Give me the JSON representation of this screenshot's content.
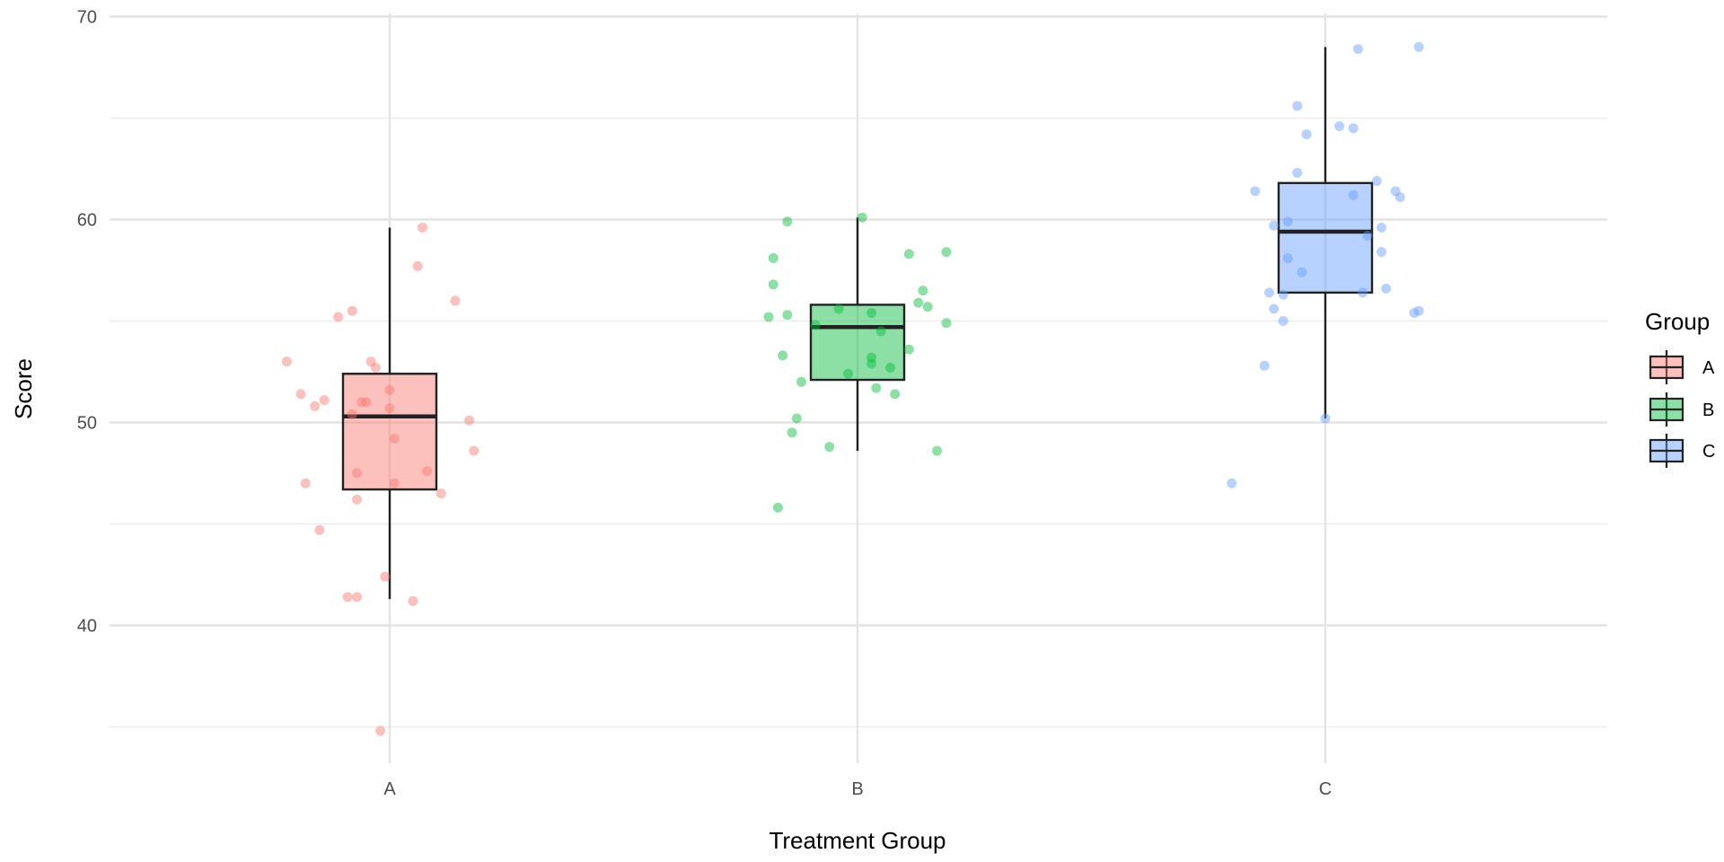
{
  "chart_data": {
    "type": "boxplot",
    "xlabel": "Treatment Group",
    "ylabel": "Score",
    "categories": [
      "A",
      "B",
      "C"
    ],
    "ylim": [
      33,
      70
    ],
    "yticks": [
      40,
      50,
      60,
      70
    ],
    "grid": true,
    "legend": {
      "title": "Group",
      "position": "right",
      "entries": [
        "A",
        "B",
        "C"
      ]
    },
    "colors": {
      "A": "#F8766D",
      "B": "#00BA38",
      "C": "#619CFF"
    },
    "boxes": [
      {
        "group": "A",
        "q1": 46.7,
        "median": 50.3,
        "q3": 52.4,
        "whisker_low": 41.3,
        "whisker_high": 59.6
      },
      {
        "group": "B",
        "q1": 52.1,
        "median": 54.7,
        "q3": 55.8,
        "whisker_low": 48.6,
        "whisker_high": 60.1
      },
      {
        "group": "C",
        "q1": 56.4,
        "median": 59.4,
        "q3": 61.8,
        "whisker_low": 50.2,
        "whisker_high": 68.5
      }
    ],
    "points": {
      "A": [
        {
          "x": -0.22,
          "y": 53.0
        },
        {
          "x": -0.19,
          "y": 51.4
        },
        {
          "x": -0.18,
          "y": 47.0
        },
        {
          "x": -0.15,
          "y": 44.7
        },
        {
          "x": -0.16,
          "y": 50.8
        },
        {
          "x": -0.14,
          "y": 51.1
        },
        {
          "x": -0.11,
          "y": 55.2
        },
        {
          "x": -0.09,
          "y": 41.4
        },
        {
          "x": -0.07,
          "y": 41.4
        },
        {
          "x": -0.08,
          "y": 55.5
        },
        {
          "x": -0.08,
          "y": 50.4
        },
        {
          "x": -0.07,
          "y": 47.5
        },
        {
          "x": -0.07,
          "y": 46.2
        },
        {
          "x": -0.06,
          "y": 51.0
        },
        {
          "x": -0.05,
          "y": 51.0
        },
        {
          "x": -0.04,
          "y": 53.0
        },
        {
          "x": -0.03,
          "y": 52.7
        },
        {
          "x": -0.02,
          "y": 34.8
        },
        {
          "x": -0.01,
          "y": 42.4
        },
        {
          "x": 0.0,
          "y": 51.6
        },
        {
          "x": 0.0,
          "y": 50.7
        },
        {
          "x": 0.01,
          "y": 49.2
        },
        {
          "x": 0.01,
          "y": 47.0
        },
        {
          "x": 0.05,
          "y": 41.2
        },
        {
          "x": 0.06,
          "y": 57.7
        },
        {
          "x": 0.07,
          "y": 59.6
        },
        {
          "x": 0.08,
          "y": 47.6
        },
        {
          "x": 0.11,
          "y": 46.5
        },
        {
          "x": 0.14,
          "y": 56.0
        },
        {
          "x": 0.17,
          "y": 50.1
        },
        {
          "x": 0.18,
          "y": 48.6
        }
      ],
      "B": [
        {
          "x": -0.19,
          "y": 55.2
        },
        {
          "x": -0.18,
          "y": 58.1
        },
        {
          "x": -0.18,
          "y": 56.8
        },
        {
          "x": -0.17,
          "y": 45.8
        },
        {
          "x": -0.16,
          "y": 53.3
        },
        {
          "x": -0.15,
          "y": 55.3
        },
        {
          "x": -0.15,
          "y": 59.9
        },
        {
          "x": -0.14,
          "y": 49.5
        },
        {
          "x": -0.13,
          "y": 50.2
        },
        {
          "x": -0.12,
          "y": 52.0
        },
        {
          "x": -0.09,
          "y": 54.8
        },
        {
          "x": -0.06,
          "y": 48.8
        },
        {
          "x": -0.04,
          "y": 55.6
        },
        {
          "x": -0.02,
          "y": 52.4
        },
        {
          "x": 0.01,
          "y": 60.1
        },
        {
          "x": 0.03,
          "y": 52.9
        },
        {
          "x": 0.03,
          "y": 55.4
        },
        {
          "x": 0.03,
          "y": 53.2
        },
        {
          "x": 0.04,
          "y": 51.7
        },
        {
          "x": 0.05,
          "y": 54.5
        },
        {
          "x": 0.07,
          "y": 52.7
        },
        {
          "x": 0.08,
          "y": 51.4
        },
        {
          "x": 0.11,
          "y": 58.3
        },
        {
          "x": 0.11,
          "y": 53.6
        },
        {
          "x": 0.13,
          "y": 55.9
        },
        {
          "x": 0.14,
          "y": 56.5
        },
        {
          "x": 0.15,
          "y": 55.7
        },
        {
          "x": 0.17,
          "y": 48.6
        },
        {
          "x": 0.19,
          "y": 54.9
        },
        {
          "x": 0.19,
          "y": 58.4
        }
      ],
      "C": [
        {
          "x": -0.2,
          "y": 47.0
        },
        {
          "x": -0.15,
          "y": 61.4
        },
        {
          "x": -0.13,
          "y": 52.8
        },
        {
          "x": -0.12,
          "y": 56.4
        },
        {
          "x": -0.11,
          "y": 55.6
        },
        {
          "x": -0.11,
          "y": 59.7
        },
        {
          "x": -0.09,
          "y": 56.3
        },
        {
          "x": -0.09,
          "y": 55.0
        },
        {
          "x": -0.08,
          "y": 59.9
        },
        {
          "x": -0.08,
          "y": 58.1
        },
        {
          "x": -0.06,
          "y": 65.6
        },
        {
          "x": -0.06,
          "y": 62.3
        },
        {
          "x": -0.05,
          "y": 57.4
        },
        {
          "x": -0.04,
          "y": 64.2
        },
        {
          "x": 0.0,
          "y": 50.2
        },
        {
          "x": 0.03,
          "y": 64.6
        },
        {
          "x": 0.06,
          "y": 61.2
        },
        {
          "x": 0.06,
          "y": 64.5
        },
        {
          "x": 0.07,
          "y": 68.4
        },
        {
          "x": 0.08,
          "y": 56.4
        },
        {
          "x": 0.09,
          "y": 59.2
        },
        {
          "x": 0.11,
          "y": 61.9
        },
        {
          "x": 0.12,
          "y": 59.6
        },
        {
          "x": 0.12,
          "y": 58.4
        },
        {
          "x": 0.13,
          "y": 56.6
        },
        {
          "x": 0.15,
          "y": 61.4
        },
        {
          "x": 0.16,
          "y": 61.1
        },
        {
          "x": 0.19,
          "y": 55.4
        },
        {
          "x": 0.2,
          "y": 68.5
        },
        {
          "x": 0.2,
          "y": 55.5
        }
      ]
    }
  }
}
